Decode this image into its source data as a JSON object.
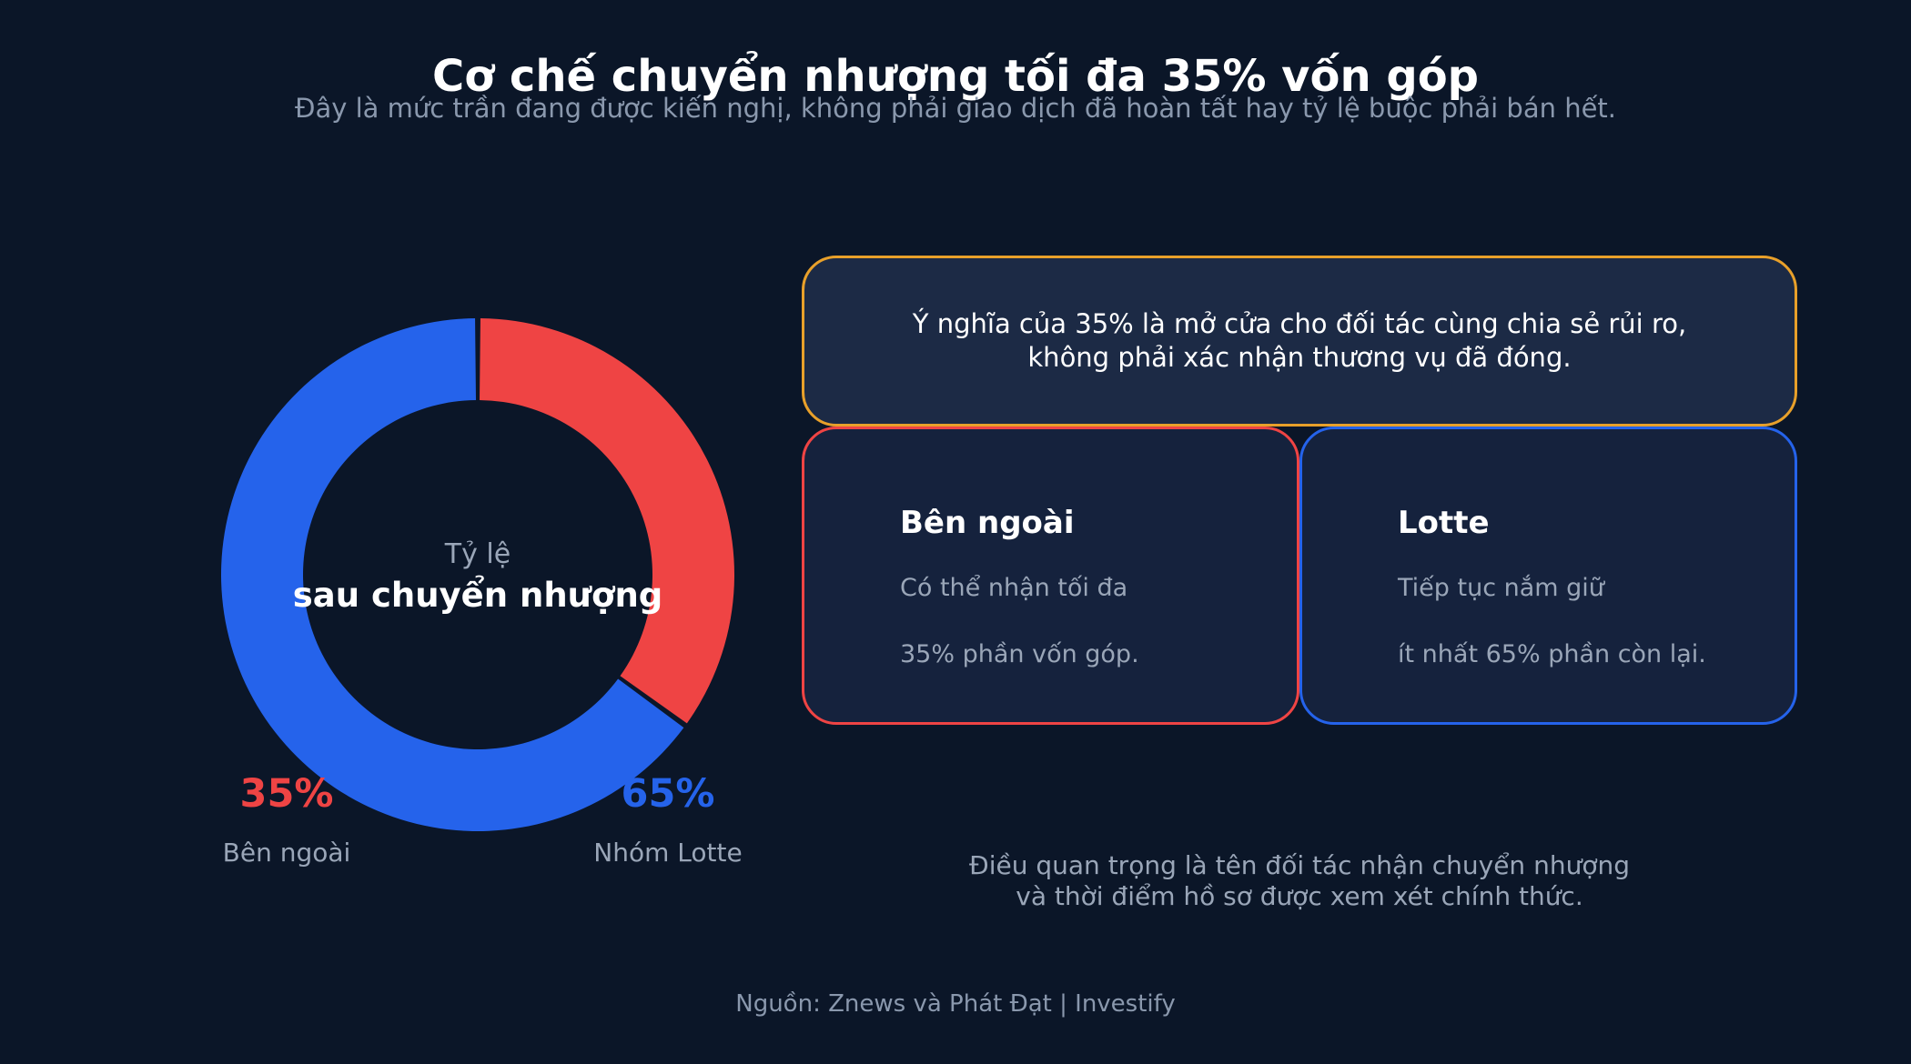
{
  "title": "Cơ chế chuyển nhượng tối đa 35% vốn góp",
  "subtitle": "Đây là mức trần đang được kiến nghị, không phải giao dịch đã hoàn tất hay tỷ lệ buộc phải bán hết.",
  "chart_data": {
    "type": "pie",
    "style": "donut",
    "center_label_top": "Tỷ lệ",
    "center_label_main": "sau chuyển nhượng",
    "slices": [
      {
        "label": "Bên ngoài",
        "value": 35,
        "value_label": "35%",
        "color": "#ef4444"
      },
      {
        "label": "Nhóm Lotte",
        "value": 65,
        "value_label": "65%",
        "color": "#2563eb"
      }
    ]
  },
  "callout": {
    "line1": "Ý nghĩa của 35% là mở cửa cho đối tác cùng chia sẻ rủi ro,",
    "line2": "không phải xác nhận thương vụ đã đóng."
  },
  "cards": {
    "external": {
      "title": "Bên ngoài",
      "line1": "Có thể nhận tối đa",
      "line2": "35% phần vốn góp."
    },
    "lotte": {
      "title": "Lotte",
      "line1": "Tiếp tục nắm giữ",
      "line2": "ít nhất 65% phần còn lại."
    }
  },
  "conclusion": {
    "line1": "Điều quan trọng là tên đối tác nhận chuyển nhượng",
    "line2": "và thời điểm hồ sơ được xem xét chính thức."
  },
  "source": "Nguồn: Znews và Phát Đạt | Investify",
  "colors": {
    "background": "#0b1628",
    "external": "#ef4444",
    "lotte": "#2563eb",
    "callout_border": "#e8a02a"
  }
}
